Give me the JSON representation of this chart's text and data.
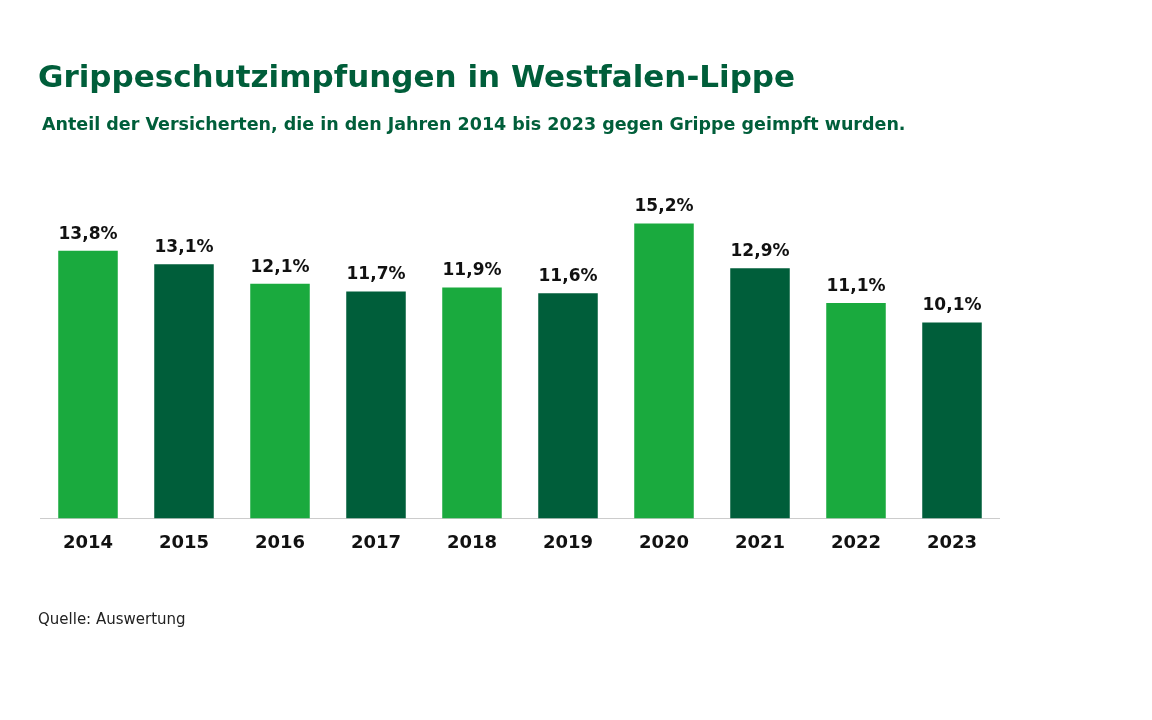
{
  "chart_data": {
    "type": "bar",
    "title": "Grippeschutzimpfungen in Westfalen-Lippe",
    "subtitle": "Anteil der Versicherten, die in den Jahren 2014 bis 2023 gegen Grippe geimpft wurden.",
    "annotations": [
      "Quelle: Auswertung"
    ],
    "categories": [
      "2014",
      "2015",
      "2016",
      "2017",
      "2018",
      "2019",
      "2020",
      "2021",
      "2022",
      "2023"
    ],
    "values": [
      13.8,
      13.1,
      12.1,
      11.7,
      11.9,
      11.6,
      15.2,
      12.9,
      11.1,
      10.1
    ],
    "colors": [
      "#1aaa3e",
      "#005e3a",
      "#1aaa3e",
      "#005e3a",
      "#1aaa3e",
      "#005e3a",
      "#1aaa3e",
      "#005e3a",
      "#1aaa3e",
      "#005e3a"
    ],
    "value_labels": [
      "13,8%",
      "13,1%",
      "12,1%",
      "11,7%",
      "11,9%",
      "11,6%",
      "15,2%",
      "12,9%",
      "11,1%",
      "10,1%"
    ],
    "grid": false,
    "legend": false
  }
}
